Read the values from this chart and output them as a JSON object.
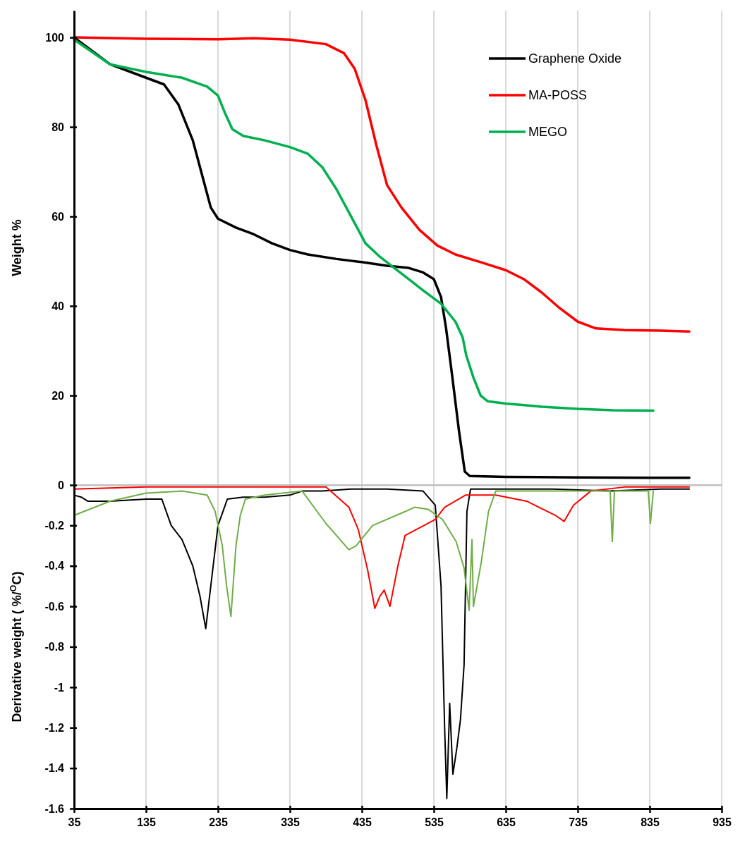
{
  "chart_data": [
    {
      "type": "line",
      "ylabel": "Weight %",
      "xlim": [
        35,
        935
      ],
      "xticks": [
        35,
        135,
        235,
        335,
        435,
        535,
        635,
        735,
        835,
        935
      ],
      "ylim": [
        0,
        106
      ],
      "yticks": [
        20,
        40,
        60,
        80,
        100
      ],
      "grid": "x",
      "legend": "top right",
      "tick_labels": "y",
      "series": [
        {
          "name": "Graphene Oxide",
          "color": "#000000",
          "x": [
            35,
            85,
            135,
            160,
            180,
            200,
            215,
            225,
            235,
            260,
            285,
            310,
            335,
            360,
            400,
            435,
            470,
            500,
            520,
            535,
            545,
            552,
            560,
            570,
            578,
            585,
            635,
            735,
            835,
            890
          ],
          "values": [
            100,
            94,
            91,
            89.5,
            85,
            77,
            68,
            62,
            59.5,
            57.5,
            56,
            54,
            52.5,
            51.5,
            50.5,
            49.8,
            49,
            48.5,
            47.5,
            46,
            42,
            35,
            25,
            12,
            3,
            2,
            1.8,
            1.7,
            1.6,
            1.6
          ]
        },
        {
          "name": "MA-POSS",
          "color": "#ff0000",
          "x": [
            35,
            135,
            235,
            285,
            335,
            385,
            410,
            425,
            440,
            455,
            470,
            490,
            515,
            540,
            565,
            600,
            635,
            660,
            685,
            710,
            735,
            760,
            800,
            850,
            890
          ],
          "values": [
            100,
            99.7,
            99.6,
            99.8,
            99.5,
            98.5,
            96.5,
            93,
            86,
            76,
            67,
            62,
            57,
            53.5,
            51.5,
            49.8,
            48,
            46,
            43,
            39.5,
            36.5,
            35,
            34.6,
            34.5,
            34.3
          ]
        },
        {
          "name": "MEGO",
          "color": "#00b050",
          "x": [
            35,
            85,
            135,
            185,
            220,
            235,
            245,
            255,
            270,
            300,
            335,
            360,
            380,
            400,
            420,
            440,
            460,
            480,
            500,
            520,
            545,
            565,
            575,
            580,
            590,
            600,
            610,
            635,
            685,
            735,
            785,
            840
          ],
          "values": [
            99.5,
            94,
            92.3,
            91,
            89,
            87,
            83,
            79.5,
            78,
            77,
            75.5,
            74,
            71,
            66,
            60,
            54,
            51,
            48.5,
            46,
            43.5,
            40.5,
            36.5,
            33,
            29,
            24,
            20,
            18.7,
            18.2,
            17.5,
            17,
            16.7,
            16.6
          ]
        }
      ]
    },
    {
      "type": "line",
      "xlabel": null,
      "ylabel": "Derivative weight ( %/$^{O}$C)",
      "xlim": [
        35,
        935
      ],
      "xticks": [
        35,
        135,
        235,
        335,
        435,
        535,
        635,
        735,
        835,
        935
      ],
      "ylim": [
        -1.6,
        0
      ],
      "yticks": [
        -1.6,
        -1.4,
        -1.2,
        -1,
        -0.8,
        -0.6,
        -0.4,
        -0.2,
        0
      ],
      "grid": "x",
      "series": [
        {
          "color": "#000000",
          "x": [
            35,
            45,
            54,
            85,
            135,
            157,
            170,
            185,
            200,
            210,
            218,
            225,
            235,
            248,
            270,
            300,
            335,
            352,
            380,
            420,
            470,
            520,
            537,
            545,
            550,
            553,
            557,
            561.5,
            567,
            572,
            577,
            581,
            586,
            620,
            700,
            780,
            850,
            890
          ],
          "values": [
            -0.05,
            -0.06,
            -0.08,
            -0.08,
            -0.07,
            -0.07,
            -0.2,
            -0.27,
            -0.4,
            -0.55,
            -0.71,
            -0.5,
            -0.2,
            -0.07,
            -0.06,
            -0.06,
            -0.05,
            -0.03,
            -0.03,
            -0.02,
            -0.02,
            -0.03,
            -0.1,
            -0.5,
            -1.2,
            -1.55,
            -1.08,
            -1.43,
            -1.3,
            -1.16,
            -0.89,
            -0.13,
            -0.02,
            -0.02,
            -0.02,
            -0.03,
            -0.02,
            -0.02
          ]
        },
        {
          "color": "#ff0000",
          "x": [
            35,
            135,
            235,
            335,
            385,
            417,
            430,
            443,
            453,
            460,
            466,
            474,
            485,
            495,
            537,
            550,
            579,
            621,
            664,
            704,
            716,
            729,
            753,
            800,
            890
          ],
          "values": [
            -0.02,
            -0.01,
            -0.01,
            -0.01,
            -0.01,
            -0.11,
            -0.22,
            -0.42,
            -0.61,
            -0.55,
            -0.52,
            -0.6,
            -0.4,
            -0.25,
            -0.17,
            -0.11,
            -0.05,
            -0.05,
            -0.08,
            -0.15,
            -0.18,
            -0.1,
            -0.03,
            -0.01,
            -0.01
          ]
        },
        {
          "color": "#70ad47",
          "x": [
            35,
            85,
            135,
            185,
            220,
            231,
            241,
            247,
            253,
            256,
            260,
            266,
            273,
            300,
            352,
            385,
            417,
            427,
            450,
            496,
            508,
            527,
            547,
            566,
            577,
            584,
            588,
            590,
            601,
            611,
            621,
            700,
            780,
            783,
            786,
            833,
            836,
            840
          ],
          "values": [
            -0.15,
            -0.08,
            -0.04,
            -0.03,
            -0.05,
            -0.13,
            -0.3,
            -0.5,
            -0.65,
            -0.5,
            -0.3,
            -0.15,
            -0.07,
            -0.05,
            -0.03,
            -0.19,
            -0.32,
            -0.3,
            -0.2,
            -0.13,
            -0.11,
            -0.12,
            -0.17,
            -0.28,
            -0.41,
            -0.62,
            -0.27,
            -0.6,
            -0.38,
            -0.13,
            -0.03,
            -0.03,
            -0.03,
            -0.28,
            -0.03,
            -0.03,
            -0.19,
            -0.03
          ]
        }
      ]
    }
  ]
}
